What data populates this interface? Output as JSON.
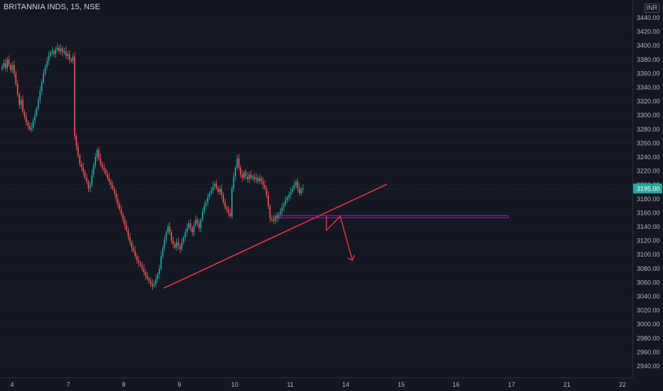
{
  "header": {
    "title": "BRITANNIA INDS, 15, NSE",
    "currency": "INR"
  },
  "price_label": {
    "value": "3195.00",
    "color": "#26a69a"
  },
  "colors": {
    "up": "#26a69a",
    "down": "#ef5350",
    "trendline": "#f23645",
    "support": "#9c27b0",
    "arrow": "#f23645"
  },
  "chart_data": {
    "type": "candlestick",
    "title": "BRITANNIA INDS, 15, NSE",
    "yaxis": {
      "range": [
        2930,
        3460
      ],
      "ticks": [
        "3440.00",
        "3420.00",
        "3400.00",
        "3380.00",
        "3360.00",
        "3340.00",
        "3320.00",
        "3300.00",
        "3280.00",
        "3260.00",
        "3240.00",
        "3220.00",
        "3200.00",
        "3180.00",
        "3160.00",
        "3140.00",
        "3120.00",
        "3100.00",
        "3080.00",
        "3060.00",
        "3040.00",
        "3020.00",
        "3000.00",
        "2980.00",
        "2960.00",
        "2940.00"
      ]
    },
    "xaxis": {
      "ticks": [
        "4",
        "7",
        "8",
        "9",
        "10",
        "11",
        "14",
        "15",
        "16",
        "17",
        "21",
        "22"
      ]
    },
    "last_price": 3195,
    "closes": [
      3370,
      3375,
      3368,
      3380,
      3372,
      3365,
      3372,
      3360,
      3345,
      3330,
      3315,
      3322,
      3305,
      3298,
      3290,
      3285,
      3280,
      3282,
      3292,
      3300,
      3310,
      3322,
      3335,
      3348,
      3360,
      3370,
      3378,
      3385,
      3390,
      3392,
      3388,
      3394,
      3397,
      3392,
      3396,
      3390,
      3392,
      3385,
      3388,
      3380,
      3378,
      3384,
      3270,
      3255,
      3242,
      3230,
      3225,
      3218,
      3210,
      3205,
      3195,
      3200,
      3215,
      3228,
      3240,
      3250,
      3238,
      3230,
      3225,
      3222,
      3216,
      3210,
      3205,
      3200,
      3195,
      3188,
      3180,
      3172,
      3165,
      3158,
      3150,
      3142,
      3135,
      3125,
      3118,
      3110,
      3105,
      3098,
      3092,
      3088,
      3085,
      3080,
      3075,
      3070,
      3066,
      3062,
      3058,
      3055,
      3058,
      3065,
      3072,
      3080,
      3098,
      3110,
      3122,
      3132,
      3140,
      3132,
      3120,
      3115,
      3110,
      3118,
      3112,
      3108,
      3118,
      3125,
      3132,
      3138,
      3145,
      3138,
      3132,
      3142,
      3150,
      3145,
      3138,
      3150,
      3162,
      3170,
      3175,
      3182,
      3188,
      3192,
      3198,
      3202,
      3196,
      3190,
      3194,
      3186,
      3175,
      3168,
      3165,
      3160,
      3155,
      3195,
      3212,
      3225,
      3238,
      3225,
      3215,
      3210,
      3218,
      3212,
      3208,
      3215,
      3210,
      3212,
      3208,
      3210,
      3205,
      3210,
      3206,
      3200,
      3195,
      3185,
      3170,
      3152,
      3150,
      3148,
      3155,
      3152,
      3158,
      3162,
      3168,
      3172,
      3178,
      3182,
      3186,
      3190,
      3195,
      3200,
      3205,
      3196,
      3188,
      3193,
      3195
    ],
    "annotations": {
      "trendline": {
        "from": {
          "bar": 94,
          "price": 3052
        },
        "to": {
          "bar": 223,
          "price": 3201
        }
      },
      "support_band": [
        3153,
        3156
      ],
      "projection": [
        {
          "bar": 188,
          "price": 3155
        },
        {
          "bar": 188,
          "price": 3135
        },
        {
          "bar": 196,
          "price": 3155
        },
        {
          "bar": 203,
          "price": 3092
        }
      ]
    }
  }
}
